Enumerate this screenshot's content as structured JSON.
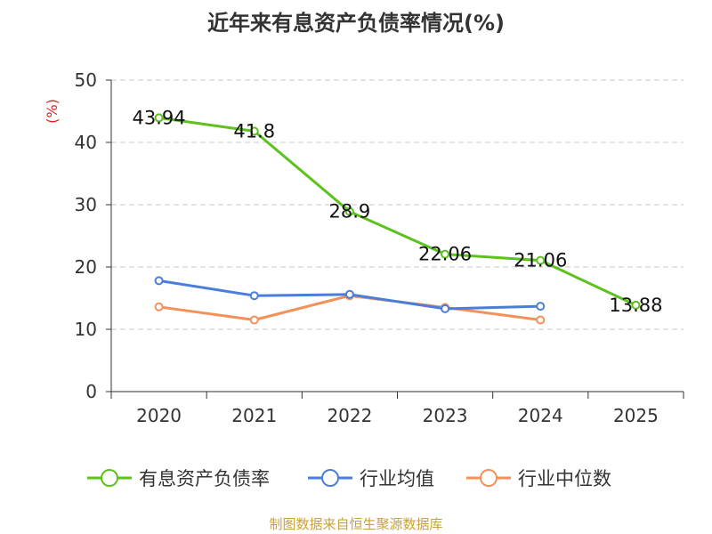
{
  "chart_data": {
    "type": "line",
    "title": "近年来有息资产负债率情况(%)",
    "ylabel": "(%)",
    "xlabel": "",
    "categories": [
      "2020",
      "2021",
      "2022",
      "2023",
      "2024",
      "2025"
    ],
    "yticks": [
      "0",
      "10",
      "20",
      "30",
      "40",
      "50"
    ],
    "ylim": [
      0,
      50
    ],
    "grid": "horizontal dashed",
    "legend_position": "bottom",
    "series": [
      {
        "name": "有息资产负债率",
        "color": "#5dc11e",
        "values": [
          43.94,
          41.8,
          28.9,
          22.06,
          21.06,
          13.88
        ],
        "labels": [
          "43.94",
          "41.8",
          "28.9",
          "22.06",
          "21.06",
          "13.88"
        ]
      },
      {
        "name": "行业均值",
        "color": "#4a7ed9",
        "values": [
          17.8,
          15.4,
          15.6,
          13.3,
          13.7,
          null
        ]
      },
      {
        "name": "行业中位数",
        "color": "#f4905a",
        "values": [
          13.6,
          11.5,
          15.4,
          13.5,
          11.5,
          null
        ]
      }
    ]
  },
  "source": "制图数据来自恒生聚源数据库"
}
